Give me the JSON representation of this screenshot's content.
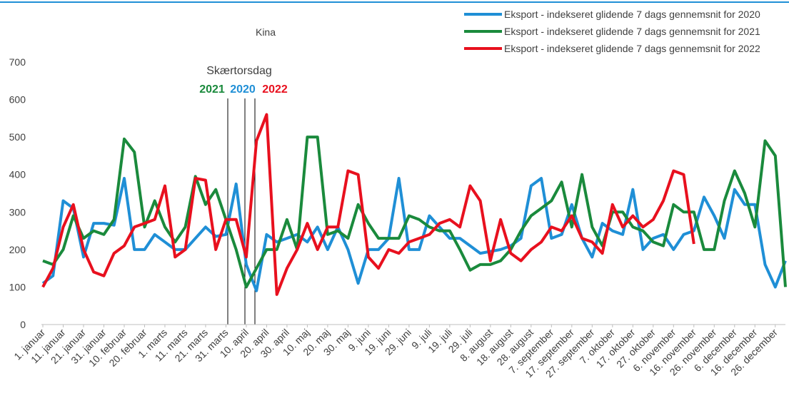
{
  "chart_data": {
    "type": "line",
    "title": "Kina",
    "categories": [
      "1. januar",
      null,
      "11. januar",
      null,
      "21. januar",
      null,
      "31. januar",
      null,
      "10. februar",
      null,
      "20. februar",
      null,
      "1. marts",
      null,
      "11. marts",
      null,
      "21. marts",
      null,
      "31. marts",
      null,
      "10. april",
      null,
      "20. april",
      null,
      "30. april",
      null,
      "10. maj",
      null,
      "20. maj",
      null,
      "30. maj",
      null,
      "9. juni",
      null,
      "19. juni",
      null,
      "29. juni",
      null,
      "9. juli",
      null,
      "19. juli",
      null,
      "29. juli",
      null,
      "8. august",
      null,
      "18. august",
      null,
      "28. august",
      null,
      "7. september",
      null,
      "17. september",
      null,
      "27. september",
      null,
      "7. oktober",
      null,
      "17. oktober",
      null,
      "27. oktober",
      null,
      "6. november",
      null,
      "16. november",
      null,
      "26. november",
      null,
      "6. december",
      null,
      "16. december",
      null,
      "26. december",
      null
    ],
    "series": [
      {
        "name": "Eksport - indekseret glidende 7 dags gennemsnit for 2020",
        "color": "#1f8fd6",
        "values": [
          110,
          130,
          330,
          310,
          180,
          270,
          270,
          265,
          390,
          200,
          200,
          240,
          220,
          200,
          200,
          230,
          260,
          235,
          240,
          375,
          160,
          90,
          240,
          220,
          230,
          240,
          220,
          260,
          200,
          260,
          200,
          110,
          200,
          200,
          230,
          390,
          200,
          200,
          290,
          260,
          230,
          230,
          210,
          190,
          195,
          200,
          210,
          230,
          370,
          390,
          230,
          240,
          320,
          230,
          180,
          270,
          250,
          240,
          360,
          200,
          230,
          240,
          200,
          240,
          250,
          340,
          290,
          230,
          360,
          320,
          320,
          160,
          100,
          170
        ]
      },
      {
        "name": "Eksport - indekseret glidende 7 dags gennemsnit for 2021",
        "color": "#1a8a3c",
        "values": [
          170,
          160,
          200,
          290,
          230,
          250,
          240,
          280,
          495,
          460,
          260,
          330,
          260,
          220,
          260,
          395,
          320,
          360,
          280,
          200,
          100,
          150,
          200,
          200,
          280,
          200,
          500,
          500,
          240,
          250,
          230,
          320,
          270,
          230,
          230,
          230,
          290,
          280,
          260,
          250,
          250,
          200,
          145,
          160,
          160,
          170,
          200,
          250,
          290,
          310,
          330,
          380,
          260,
          400,
          260,
          210,
          300,
          300,
          260,
          250,
          220,
          210,
          320,
          300,
          300,
          200,
          200,
          330,
          410,
          350,
          260,
          490,
          450,
          100
        ]
      },
      {
        "name": "Eksport - indekseret glidende 7 dags gennemsnit for 2022",
        "color": "#e8101e",
        "values": [
          100,
          150,
          260,
          320,
          200,
          140,
          130,
          190,
          210,
          260,
          270,
          280,
          370,
          180,
          200,
          390,
          385,
          200,
          280,
          280,
          180,
          490,
          560,
          80,
          150,
          200,
          270,
          200,
          260,
          260,
          410,
          400,
          180,
          150,
          200,
          190,
          220,
          230,
          240,
          270,
          280,
          260,
          370,
          330,
          170,
          280,
          190,
          170,
          200,
          220,
          260,
          250,
          290,
          230,
          220,
          190,
          320,
          260,
          290,
          260,
          280,
          330,
          410,
          400,
          215,
          null,
          null,
          null,
          null,
          null,
          null,
          null,
          null,
          null
        ]
      }
    ],
    "ylim": [
      0,
      700
    ],
    "yticks": [
      0,
      100,
      200,
      300,
      400,
      500,
      600,
      700
    ],
    "annotations": {
      "label": "Skærtorsdag",
      "years": [
        "2021",
        "2020",
        "2022"
      ]
    },
    "legend": "top-right",
    "grid": false
  }
}
